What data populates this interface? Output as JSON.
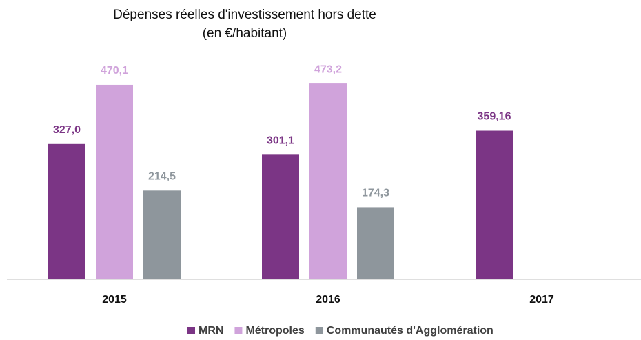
{
  "chart_data": {
    "type": "bar",
    "title": "Dépenses réelles d'investissement hors dette",
    "subtitle": "(en €/habitant)",
    "categories": [
      "2015",
      "2016",
      "2017"
    ],
    "series": [
      {
        "name": "MRN",
        "color": "#7b3585",
        "values": [
          327.0,
          301.1,
          359.16
        ],
        "value_labels": [
          "327,0",
          "301,1",
          "359,16"
        ]
      },
      {
        "name": "Métropoles",
        "color": "#d0a3db",
        "values": [
          470.1,
          473.2,
          null
        ],
        "value_labels": [
          "470,1",
          "473,2",
          null
        ]
      },
      {
        "name": "Communautés d'Agglomération",
        "color": "#8e969c",
        "values": [
          214.5,
          174.3,
          null
        ],
        "value_labels": [
          "214,5",
          "174,3",
          null
        ]
      }
    ],
    "ylim": [
      0,
      500
    ],
    "legend": "bottom"
  }
}
